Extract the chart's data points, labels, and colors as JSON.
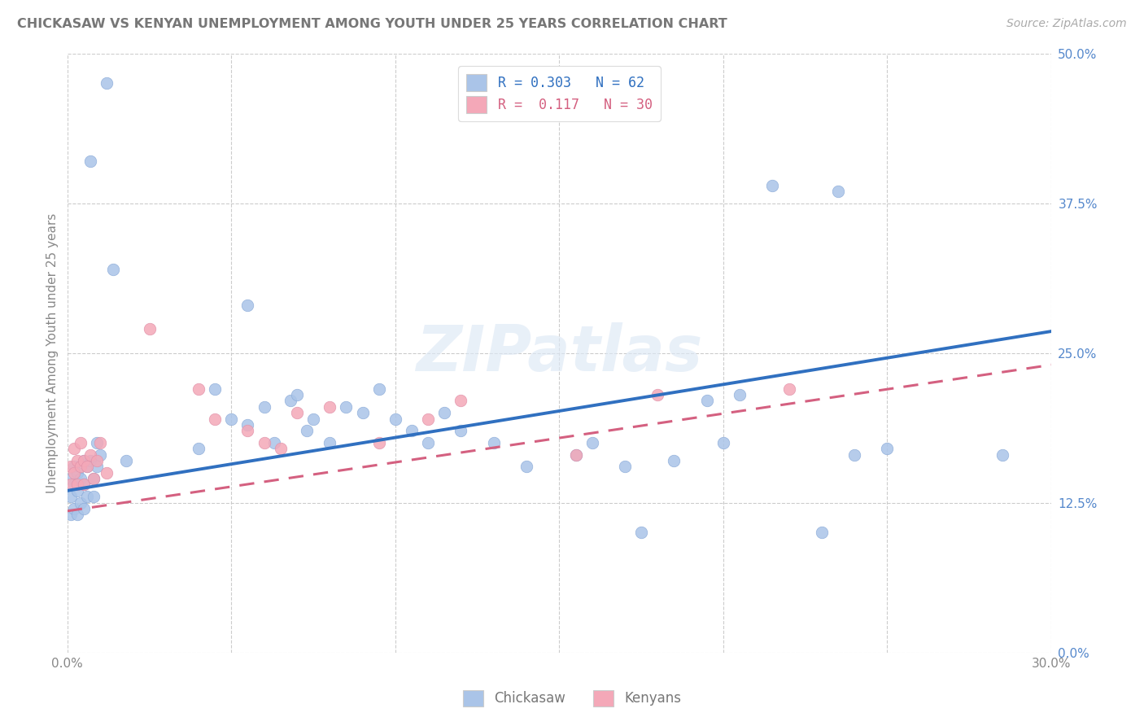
{
  "title": "CHICKASAW VS KENYAN UNEMPLOYMENT AMONG YOUTH UNDER 25 YEARS CORRELATION CHART",
  "source": "Source: ZipAtlas.com",
  "ylabel": "Unemployment Among Youth under 25 years",
  "ytick_labels": [
    "0.0%",
    "12.5%",
    "25.0%",
    "37.5%",
    "50.0%"
  ],
  "ytick_values": [
    0.0,
    0.125,
    0.25,
    0.375,
    0.5
  ],
  "xtick_values": [
    0.0,
    0.05,
    0.1,
    0.15,
    0.2,
    0.25,
    0.3
  ],
  "xlim": [
    0.0,
    0.3
  ],
  "ylim": [
    0.0,
    0.5
  ],
  "chickasaw_color": "#aac4e8",
  "kenyans_color": "#f4a8b8",
  "chickasaw_line_color": "#3070c0",
  "kenyans_line_color": "#d46080",
  "legend_color1": "#3070c0",
  "legend_color2": "#d46080",
  "watermark": "ZIPatlas",
  "chickasaw_line_y0": 0.135,
  "chickasaw_line_y1": 0.268,
  "kenyans_line_y0": 0.118,
  "kenyans_line_y1": 0.24,
  "chickasaw_pts_x": [
    0.001,
    0.001,
    0.001,
    0.002,
    0.002,
    0.002,
    0.003,
    0.003,
    0.003,
    0.004,
    0.004,
    0.005,
    0.005,
    0.005,
    0.006,
    0.006,
    0.007,
    0.007,
    0.008,
    0.008,
    0.009,
    0.009,
    0.01,
    0.012,
    0.014,
    0.018,
    0.04,
    0.045,
    0.05,
    0.055,
    0.055,
    0.06,
    0.063,
    0.068,
    0.07,
    0.073,
    0.075,
    0.08,
    0.085,
    0.09,
    0.095,
    0.1,
    0.105,
    0.11,
    0.115,
    0.12,
    0.13,
    0.14,
    0.155,
    0.16,
    0.17,
    0.175,
    0.185,
    0.195,
    0.2,
    0.205,
    0.215,
    0.23,
    0.235,
    0.24,
    0.25,
    0.285
  ],
  "chickasaw_pts_y": [
    0.145,
    0.13,
    0.115,
    0.155,
    0.14,
    0.12,
    0.15,
    0.135,
    0.115,
    0.145,
    0.125,
    0.16,
    0.14,
    0.12,
    0.155,
    0.13,
    0.41,
    0.16,
    0.145,
    0.13,
    0.175,
    0.155,
    0.165,
    0.475,
    0.32,
    0.16,
    0.17,
    0.22,
    0.195,
    0.29,
    0.19,
    0.205,
    0.175,
    0.21,
    0.215,
    0.185,
    0.195,
    0.175,
    0.205,
    0.2,
    0.22,
    0.195,
    0.185,
    0.175,
    0.2,
    0.185,
    0.175,
    0.155,
    0.165,
    0.175,
    0.155,
    0.1,
    0.16,
    0.21,
    0.175,
    0.215,
    0.39,
    0.1,
    0.385,
    0.165,
    0.17,
    0.165
  ],
  "kenyans_pts_x": [
    0.001,
    0.001,
    0.002,
    0.002,
    0.003,
    0.003,
    0.004,
    0.004,
    0.005,
    0.005,
    0.006,
    0.007,
    0.008,
    0.009,
    0.01,
    0.012,
    0.025,
    0.04,
    0.045,
    0.055,
    0.06,
    0.065,
    0.07,
    0.08,
    0.095,
    0.11,
    0.12,
    0.155,
    0.18,
    0.22
  ],
  "kenyans_pts_y": [
    0.155,
    0.14,
    0.17,
    0.15,
    0.16,
    0.14,
    0.175,
    0.155,
    0.16,
    0.14,
    0.155,
    0.165,
    0.145,
    0.16,
    0.175,
    0.15,
    0.27,
    0.22,
    0.195,
    0.185,
    0.175,
    0.17,
    0.2,
    0.205,
    0.175,
    0.195,
    0.21,
    0.165,
    0.215,
    0.22
  ]
}
